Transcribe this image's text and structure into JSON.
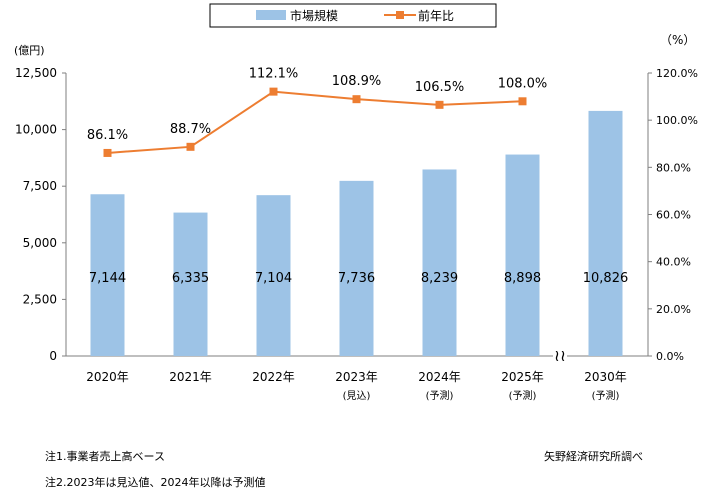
{
  "chart_data": {
    "type": "bar+line",
    "categories": [
      "2020年",
      "2021年",
      "2022年",
      "2023年",
      "2024年",
      "2025年",
      "2030年"
    ],
    "category_sublabels": [
      "",
      "",
      "",
      "(見込)",
      "(予測)",
      "(予測)",
      "(予測)"
    ],
    "series": [
      {
        "name": "市場規模",
        "type": "bar",
        "axis": "left",
        "color": "#9dc3e6",
        "values": [
          7144,
          6335,
          7104,
          7736,
          8239,
          8898,
          10826
        ],
        "value_labels": [
          "7,144",
          "6,335",
          "7,104",
          "7,736",
          "8,239",
          "8,898",
          "10,826"
        ]
      },
      {
        "name": "前年比",
        "type": "line",
        "axis": "right",
        "color": "#ed7d31",
        "values": [
          86.1,
          88.7,
          112.1,
          108.9,
          106.5,
          108.0,
          null
        ],
        "value_labels": [
          "86.1%",
          "88.7%",
          "112.1%",
          "108.9%",
          "106.5%",
          "108.0%",
          ""
        ]
      }
    ],
    "y_left": {
      "unit_label": "(億円)",
      "min": 0,
      "max": 12500,
      "ticks": [
        0,
        2500,
        5000,
        7500,
        10000,
        12500
      ],
      "tick_labels": [
        "0",
        "2,500",
        "5,000",
        "7,500",
        "10,000",
        "12,500"
      ]
    },
    "y_right": {
      "unit_label": "（%）",
      "min": 0,
      "max": 120,
      "ticks": [
        0,
        20,
        40,
        60,
        80,
        100,
        120
      ],
      "tick_labels": [
        "0.0%",
        "20.0%",
        "40.0%",
        "60.0%",
        "80.0%",
        "100.0%",
        "120.0%"
      ]
    },
    "axis_break_marker": "≀≀",
    "legend_position": "top-center",
    "grid": false
  },
  "notes": {
    "note1": "注1.事業者売上高ベース",
    "note2": "注2.2023年は見込値、2024年以降は予測値",
    "source": "矢野経済研究所調べ"
  }
}
